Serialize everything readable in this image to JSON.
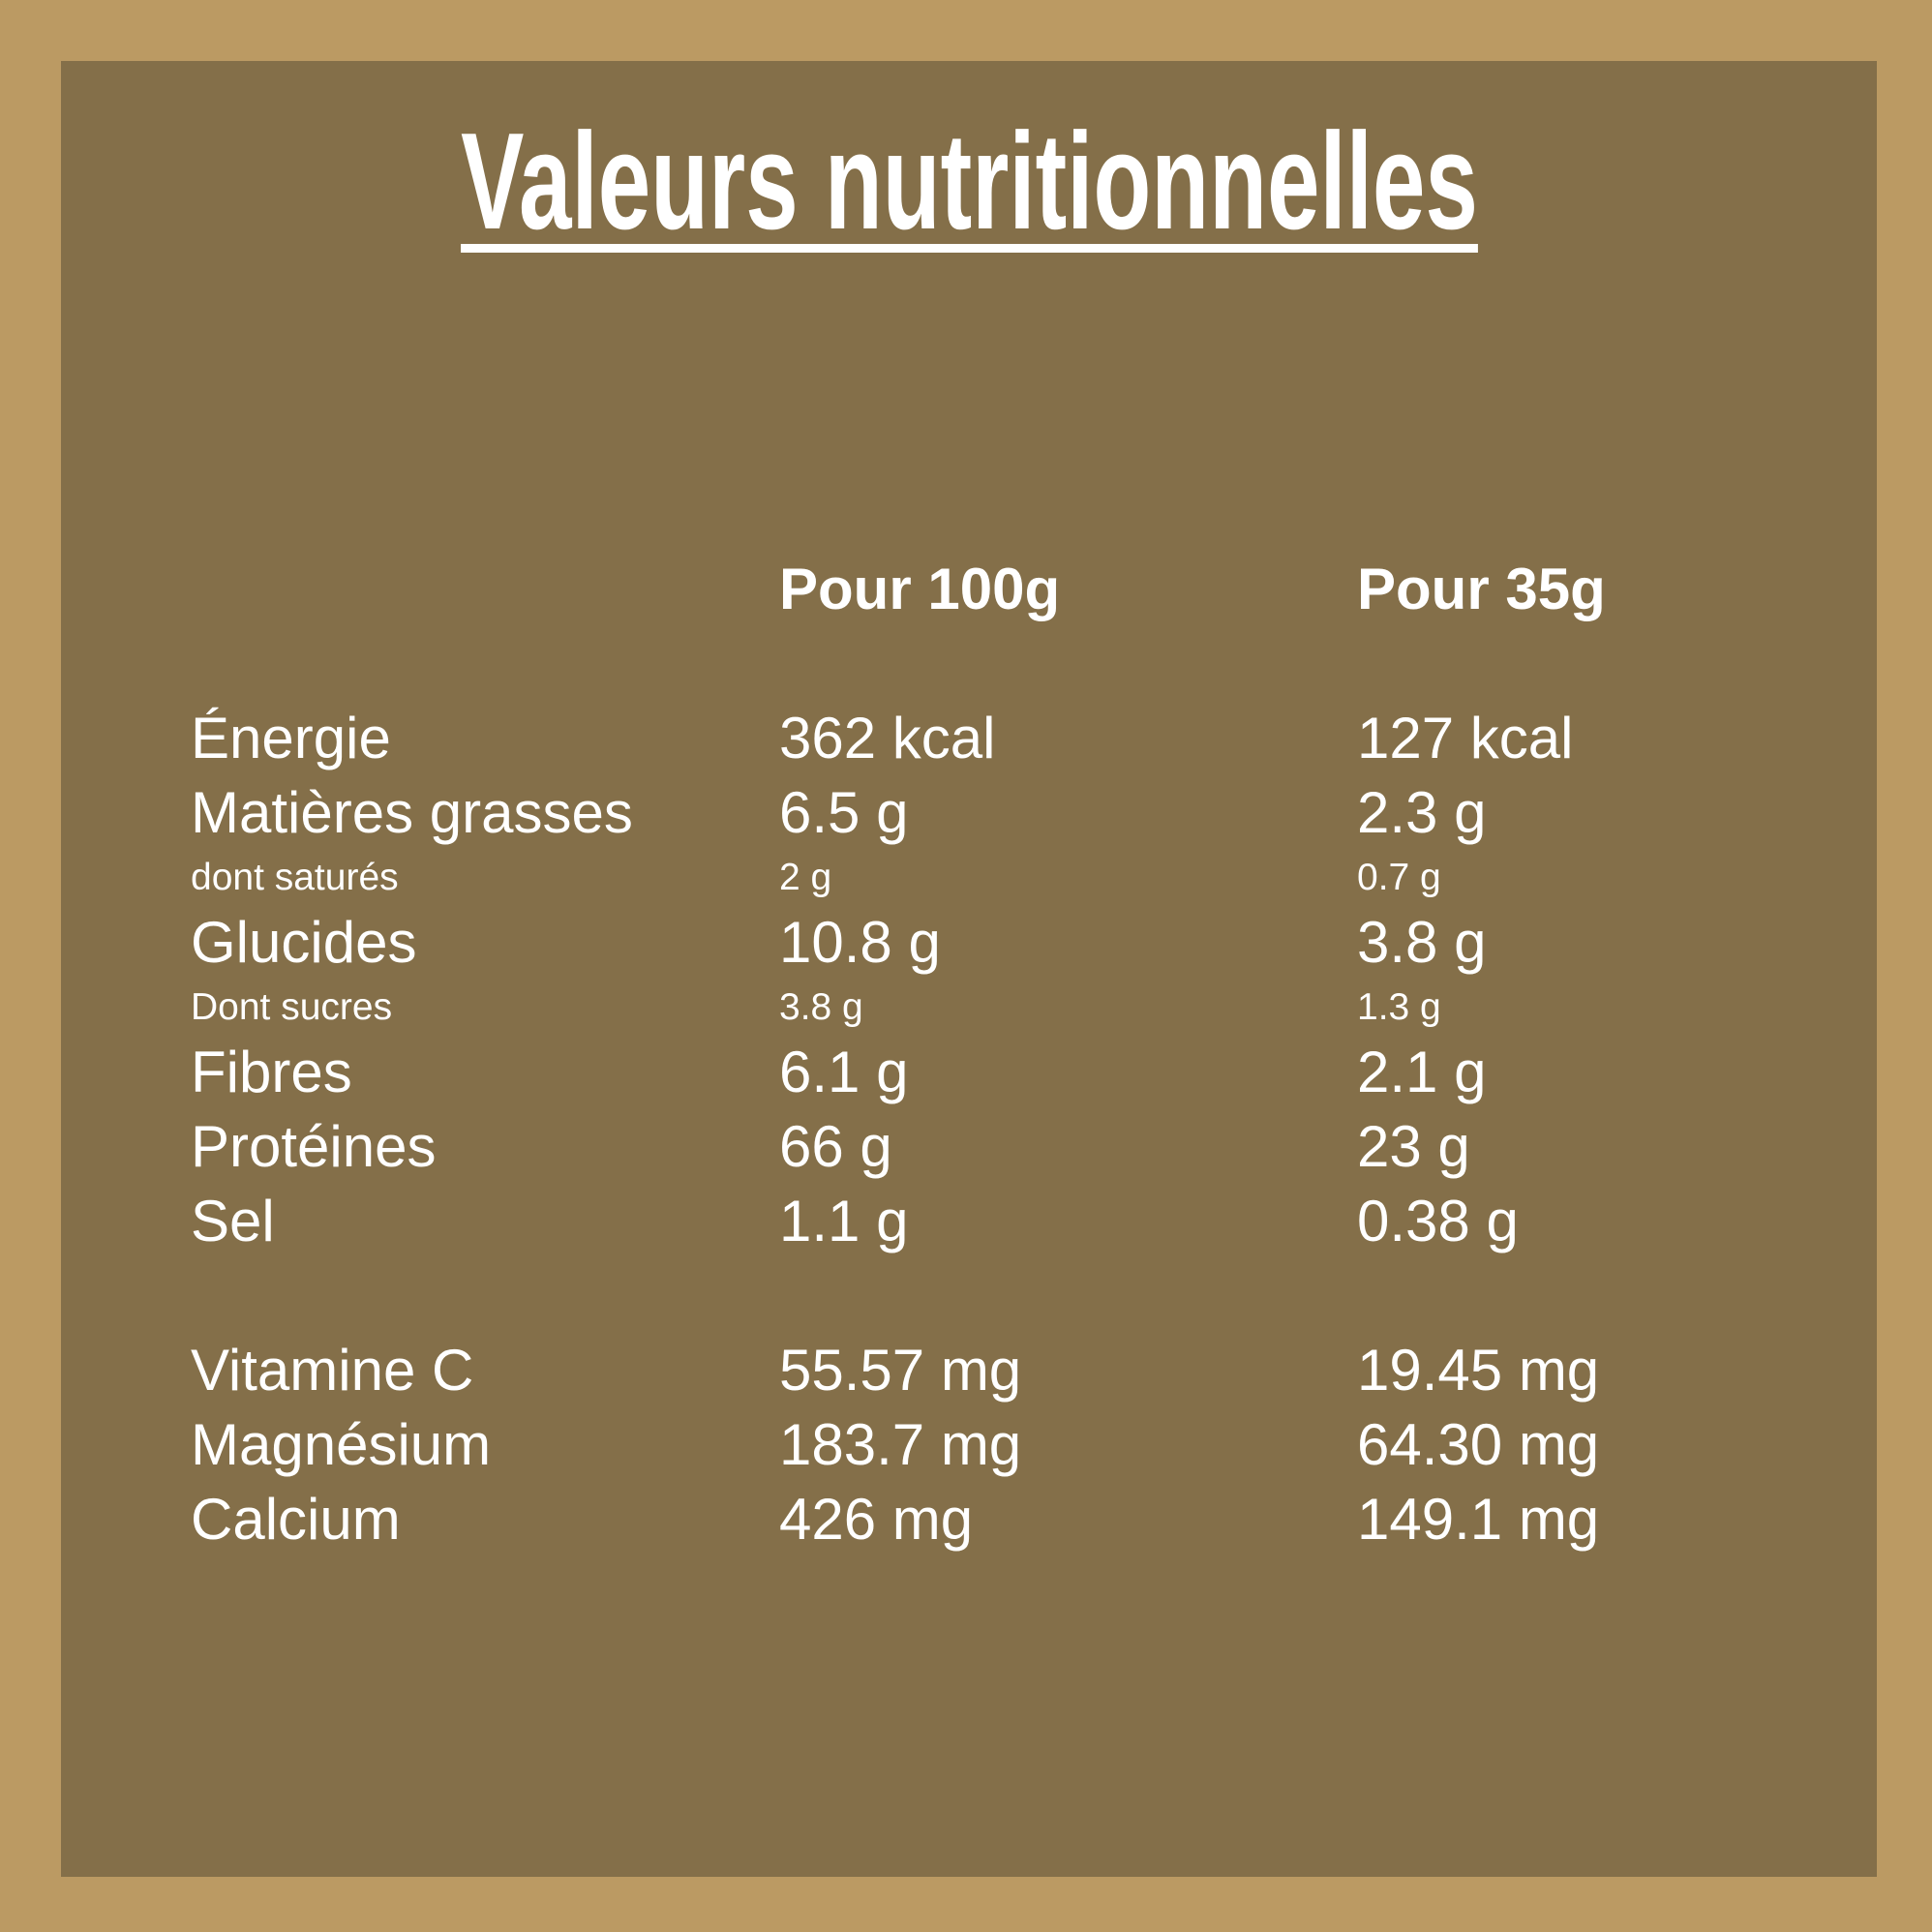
{
  "title": "Valeurs nutritionnelles",
  "colors": {
    "outer_background": "#BB9A63",
    "panel_background": "#846F49",
    "text": "#FFFFFF"
  },
  "columns": {
    "per100": "Pour 100g",
    "per35": "Pour 35g"
  },
  "rows": [
    {
      "label": "Énergie",
      "per100": "362 kcal",
      "per35": "127 kcal",
      "sub": false
    },
    {
      "label": "Matières grasses",
      "per100": "6.5 g",
      "per35": "2.3 g",
      "sub": false
    },
    {
      "label": "dont saturés",
      "per100": "2 g",
      "per35": "0.7 g",
      "sub": true
    },
    {
      "label": "Glucides",
      "per100": "10.8 g",
      "per35": "3.8 g",
      "sub": false
    },
    {
      "label": "Dont sucres",
      "per100": "3.8 g",
      "per35": "1.3 g",
      "sub": true
    },
    {
      "label": "Fibres",
      "per100": "6.1 g",
      "per35": "2.1 g",
      "sub": false
    },
    {
      "label": "Protéines",
      "per100": "66 g",
      "per35": "23 g",
      "sub": false
    },
    {
      "label": "Sel",
      "per100": "1.1 g",
      "per35": "0.38 g",
      "sub": false
    }
  ],
  "micronutrients": [
    {
      "label": "Vitamine C",
      "per100": "55.57 mg",
      "per35": "19.45 mg"
    },
    {
      "label": "Magnésium",
      "per100": "183.7 mg",
      "per35": "64.30 mg"
    },
    {
      "label": "Calcium",
      "per100": "426 mg",
      "per35": "149.1 mg"
    }
  ]
}
